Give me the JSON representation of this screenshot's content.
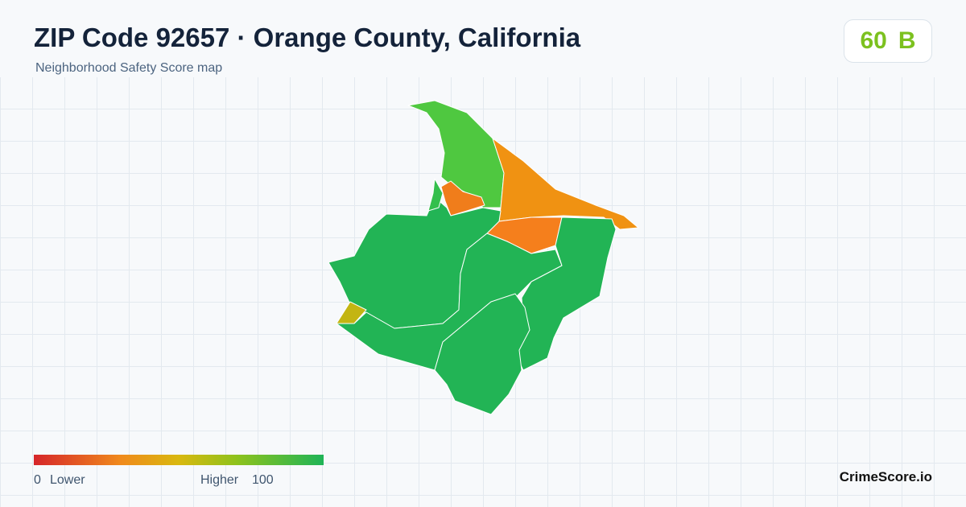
{
  "header": {
    "title": "ZIP Code 92657 · Orange County, California",
    "subtitle": "Neighborhood Safety Score map"
  },
  "score": {
    "value": 60,
    "grade": "B"
  },
  "legend": {
    "min": 0,
    "min_label": "Lower",
    "max_label": "Higher",
    "max": 100
  },
  "footer": {
    "brand": "CrimeScore.io"
  }
}
